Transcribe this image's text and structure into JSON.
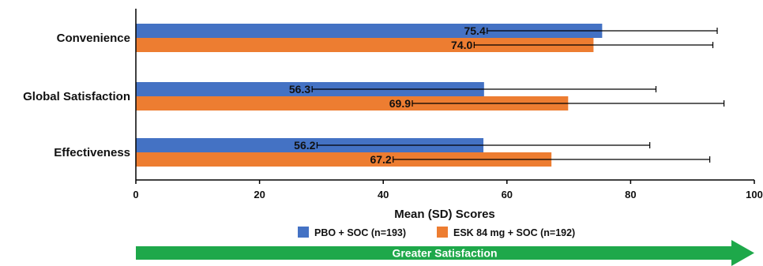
{
  "chart_data": {
    "type": "bar",
    "orientation": "horizontal",
    "categories": [
      "Convenience",
      "Global Satisfaction",
      "Effectiveness"
    ],
    "series": [
      {
        "name": "PBO + SOC (n=193)",
        "color": "#4472C4",
        "values": [
          75.4,
          56.3,
          56.2
        ],
        "sd": [
          18.6,
          27.8,
          26.9
        ],
        "labels": [
          "75.4",
          "56.3",
          "56.2"
        ]
      },
      {
        "name": "ESK 84 mg + SOC (n=192)",
        "color": "#ED7D31",
        "values": [
          74.0,
          69.9,
          67.2
        ],
        "sd": [
          19.3,
          25.2,
          25.6
        ],
        "labels": [
          "74.0",
          "69.9",
          "67.2"
        ]
      }
    ],
    "title": "",
    "xlabel": "Mean (SD) Scores",
    "ylabel": "",
    "xlim": [
      0,
      100
    ],
    "xticks": [
      "0",
      "20",
      "40",
      "60",
      "80",
      "100"
    ],
    "grid": false,
    "legend_position": "bottom",
    "arrow_label": "Greater Satisfaction",
    "arrow_color": "#1EA84A"
  }
}
